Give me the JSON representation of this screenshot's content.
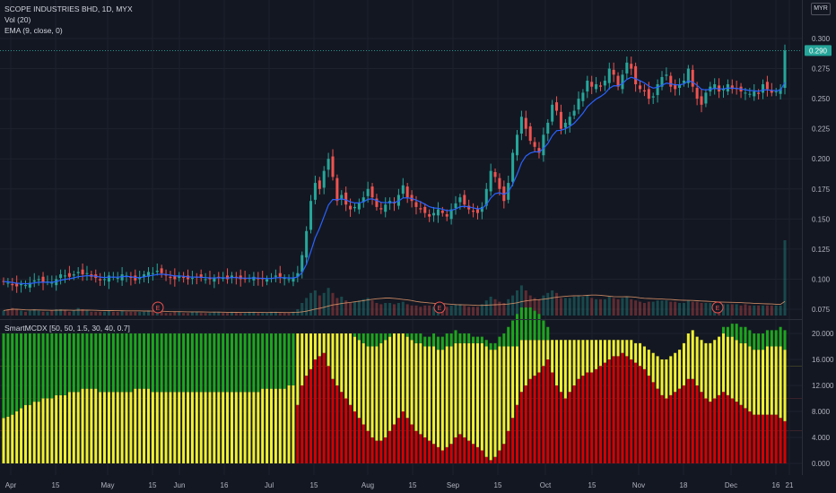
{
  "legend": {
    "title": "SCOPE INDUSTRIES BHD, 1D, MYX",
    "vol": "Vol (20)",
    "ema": "EMA (9, close, 0)",
    "indicator": "SmartMCDX [50, 50, 1.5, 30, 40, 0.7]"
  },
  "currency": "MYR",
  "colors": {
    "background": "#131722",
    "grid": "#1e222d",
    "up": "#26a69a",
    "down": "#ef5350",
    "ema": "#2962ff",
    "vol_ma": "#f0a070",
    "mcdx_banker": "#d50000",
    "mcdx_hot": "#f0f032",
    "mcdx_retail": "#1ea51e",
    "price_tag": "#26a69a",
    "axis_text": "#b2b5be"
  },
  "chart_data": [
    {
      "type": "candlestick",
      "name": "price",
      "y_ticks": [
        "0.300",
        "0.275",
        "0.250",
        "0.225",
        "0.200",
        "0.175",
        "0.150",
        "0.125",
        "0.100",
        "0.075"
      ],
      "ylim": [
        0.07,
        0.31
      ],
      "last_price": "0.290",
      "x_ticks": [
        "Apr",
        "15",
        "May",
        "15",
        "Jun",
        "16",
        "Jul",
        "15",
        "Aug",
        "15",
        "Sep",
        "15",
        "Oct",
        "15",
        "Nov",
        "18",
        "Dec",
        "16",
        "21"
      ],
      "earnings_marker": "E",
      "earnings_count": 3,
      "close": [
        0.098,
        0.097,
        0.095,
        0.094,
        0.096,
        0.095,
        0.097,
        0.099,
        0.1,
        0.097,
        0.098,
        0.097,
        0.1,
        0.104,
        0.103,
        0.102,
        0.104,
        0.106,
        0.104,
        0.105,
        0.102,
        0.101,
        0.099,
        0.1,
        0.103,
        0.102,
        0.101,
        0.104,
        0.103,
        0.101,
        0.099,
        0.101,
        0.104,
        0.106,
        0.105,
        0.107,
        0.105,
        0.103,
        0.101,
        0.1,
        0.103,
        0.101,
        0.1,
        0.101,
        0.102,
        0.101,
        0.1,
        0.1,
        0.101,
        0.102,
        0.101,
        0.1,
        0.103,
        0.101,
        0.1,
        0.1,
        0.101,
        0.102,
        0.1,
        0.1,
        0.1,
        0.101,
        0.103,
        0.102,
        0.101,
        0.1,
        0.101,
        0.105,
        0.12,
        0.14,
        0.165,
        0.18,
        0.175,
        0.19,
        0.2,
        0.185,
        0.165,
        0.17,
        0.162,
        0.158,
        0.16,
        0.163,
        0.168,
        0.175,
        0.168,
        0.16,
        0.158,
        0.162,
        0.165,
        0.163,
        0.17,
        0.178,
        0.168,
        0.165,
        0.16,
        0.158,
        0.155,
        0.152,
        0.155,
        0.158,
        0.155,
        0.152,
        0.158,
        0.163,
        0.168,
        0.162,
        0.158,
        0.156,
        0.155,
        0.16,
        0.175,
        0.19,
        0.185,
        0.175,
        0.165,
        0.18,
        0.205,
        0.22,
        0.235,
        0.225,
        0.215,
        0.21,
        0.205,
        0.22,
        0.23,
        0.245,
        0.24,
        0.225,
        0.23,
        0.235,
        0.24,
        0.25,
        0.255,
        0.265,
        0.26,
        0.262,
        0.26,
        0.265,
        0.275,
        0.27,
        0.26,
        0.27,
        0.28,
        0.275,
        0.262,
        0.258,
        0.256,
        0.25,
        0.252,
        0.262,
        0.268,
        0.27,
        0.26,
        0.258,
        0.262,
        0.265,
        0.275,
        0.26,
        0.25,
        0.245,
        0.255,
        0.26,
        0.262,
        0.256,
        0.258,
        0.262,
        0.258,
        0.258,
        0.256,
        0.255,
        0.254,
        0.256,
        0.254,
        0.262,
        0.258,
        0.255,
        0.256,
        0.258,
        0.29
      ],
      "volume": [
        0.4,
        0.5,
        0.6,
        0.5,
        0.4,
        0.3,
        0.4,
        0.5,
        0.4,
        0.3,
        0.3,
        0.4,
        0.5,
        0.5,
        0.4,
        0.3,
        0.4,
        0.6,
        0.5,
        0.4,
        0.3,
        0.3,
        0.3,
        0.3,
        0.4,
        0.3,
        0.3,
        0.4,
        0.3,
        0.3,
        0.3,
        0.3,
        0.3,
        0.4,
        0.3,
        0.3,
        0.3,
        0.2,
        0.2,
        0.3,
        0.3,
        0.2,
        0.2,
        0.3,
        0.3,
        0.2,
        0.2,
        0.2,
        0.3,
        0.3,
        0.2,
        0.2,
        0.3,
        0.2,
        0.2,
        0.2,
        0.3,
        0.3,
        0.2,
        0.2,
        0.2,
        0.3,
        0.3,
        0.2,
        0.2,
        0.2,
        0.3,
        0.5,
        1.0,
        1.4,
        1.8,
        2.0,
        1.6,
        1.8,
        2.2,
        1.8,
        1.4,
        1.5,
        1.2,
        1.0,
        1.1,
        1.2,
        1.3,
        1.4,
        1.2,
        1.0,
        0.9,
        1.0,
        1.0,
        0.9,
        1.0,
        1.1,
        0.9,
        0.8,
        0.8,
        0.7,
        0.8,
        0.8,
        0.7,
        0.7,
        0.8,
        0.7,
        0.8,
        0.9,
        0.9,
        0.8,
        0.7,
        0.7,
        0.7,
        0.9,
        1.2,
        1.5,
        1.3,
        1.1,
        1.0,
        1.3,
        1.6,
        2.0,
        2.4,
        2.0,
        1.6,
        1.4,
        1.3,
        1.6,
        1.8,
        2.0,
        1.8,
        1.4,
        1.4,
        1.4,
        1.5,
        1.6,
        1.5,
        1.6,
        1.4,
        1.3,
        1.3,
        1.3,
        1.5,
        1.4,
        1.3,
        1.4,
        1.5,
        1.3,
        1.2,
        1.1,
        1.0,
        1.1,
        1.1,
        1.2,
        1.2,
        1.2,
        1.1,
        1.1,
        1.0,
        1.0,
        1.2,
        1.1,
        1.1,
        1.0,
        1.0,
        1.0,
        1.0,
        0.9,
        0.9,
        0.9,
        0.9,
        0.9,
        0.8,
        0.9,
        0.8,
        0.8,
        0.8,
        0.8,
        0.8,
        0.8,
        0.8,
        0.8,
        6.0
      ]
    },
    {
      "type": "stacked_bar",
      "name": "SmartMCDX",
      "y_ticks": [
        "20.000",
        "16.000",
        "12.000",
        "8.000",
        "4.000",
        "0.000"
      ],
      "ylim": [
        0,
        20
      ],
      "banker": [
        0,
        0,
        0,
        0,
        0,
        0,
        0,
        0,
        0,
        0,
        0,
        0,
        0,
        0,
        0,
        0,
        0,
        0,
        0,
        0,
        0,
        0,
        0,
        0,
        0,
        0,
        0,
        0,
        0,
        0,
        0,
        0,
        0,
        0,
        0,
        0,
        0,
        0,
        0,
        0,
        0,
        0,
        0,
        0,
        0,
        0,
        0,
        0,
        0,
        0,
        0,
        0,
        0,
        0,
        0,
        0,
        0,
        0,
        0,
        0,
        0,
        0,
        0,
        0,
        0,
        0,
        0,
        9,
        12,
        13.5,
        14.5,
        16,
        16.5,
        17,
        15,
        13,
        12,
        11,
        10,
        9,
        8,
        7,
        6,
        5,
        4,
        3.5,
        3.5,
        4,
        5,
        6,
        7,
        8,
        7,
        6,
        5,
        4.5,
        4,
        3.5,
        3,
        2.5,
        2,
        2.5,
        3,
        4,
        4.5,
        4,
        3.5,
        3,
        2.5,
        2,
        1,
        0.5,
        1,
        2,
        3,
        5,
        7,
        9,
        11,
        12,
        13,
        13.5,
        14,
        15,
        16,
        14,
        12,
        11,
        10,
        11,
        12,
        13,
        13.5,
        14,
        14,
        14.5,
        15,
        15.5,
        16,
        16.5,
        16.5,
        17,
        16.5,
        16,
        15.5,
        15,
        14.5,
        13.5,
        12.5,
        11.5,
        10.5,
        10,
        10.5,
        11,
        11.5,
        12,
        13,
        13,
        12,
        11,
        10,
        9.5,
        10,
        10.5,
        11,
        10.5,
        10,
        9.5,
        9,
        8.5,
        8,
        7.5,
        7.5,
        7.5,
        7.5,
        7.5,
        7.5,
        7,
        6.5,
        6.5,
        6,
        6,
        6.5,
        12.5
      ],
      "hot": [
        7,
        7.2,
        7.5,
        8,
        8.5,
        9,
        9,
        9.5,
        9.5,
        10,
        10,
        10,
        10.5,
        10.5,
        10.5,
        11,
        11,
        11,
        11.5,
        11.5,
        11.5,
        11.5,
        11,
        11,
        11,
        11,
        11,
        11,
        11,
        11,
        11.5,
        11.5,
        11.5,
        11.5,
        11,
        11,
        11,
        11,
        11,
        11,
        11,
        11,
        11,
        11,
        11,
        11,
        11,
        11,
        11,
        11,
        11,
        11,
        11,
        11,
        11,
        11,
        11,
        11,
        11,
        11.5,
        11.5,
        11.5,
        11.5,
        11.5,
        11.5,
        12,
        12,
        11,
        8,
        6.5,
        5.5,
        4,
        3.5,
        3,
        5,
        7,
        8,
        9,
        10,
        11,
        11.5,
        12,
        12.5,
        13,
        14,
        14.5,
        15,
        15,
        14.5,
        14,
        13,
        12,
        12.5,
        13,
        13.5,
        14,
        14,
        14.5,
        15,
        15,
        15.5,
        15.5,
        15,
        14.5,
        14,
        14.5,
        15,
        15.5,
        16,
        16.5,
        17,
        17,
        16.5,
        16,
        15,
        13,
        11,
        9,
        8,
        7,
        6,
        5.5,
        5,
        4,
        3,
        5,
        7,
        8,
        9,
        8,
        7,
        6,
        5.5,
        5,
        5,
        4.5,
        4,
        3.5,
        3,
        2.5,
        2.5,
        2,
        2.5,
        3,
        3,
        3.5,
        3.5,
        4,
        4.5,
        5,
        5.5,
        6,
        6,
        6,
        6,
        6.5,
        7,
        7.5,
        7.5,
        8,
        8.5,
        9,
        9,
        9,
        9,
        9,
        9.5,
        9.5,
        9.5,
        10,
        10,
        10,
        10,
        10,
        10.5,
        10.5,
        10.5,
        11,
        11,
        11,
        11,
        6
      ],
      "retail": [
        13,
        12.8,
        12.5,
        12,
        11.5,
        11,
        11,
        10.5,
        10.5,
        10,
        10,
        10,
        9.5,
        9.5,
        9.5,
        9,
        9,
        9,
        8.5,
        8.5,
        8.5,
        8.5,
        9,
        9,
        9,
        9,
        9,
        9,
        9,
        9,
        8.5,
        8.5,
        8.5,
        8.5,
        9,
        9,
        9,
        9,
        9,
        9,
        9,
        9,
        9,
        9,
        9,
        9,
        9,
        9,
        9,
        9,
        9,
        9,
        9,
        9,
        9,
        9,
        9,
        9,
        9,
        8.5,
        8.5,
        8.5,
        8.5,
        8.5,
        8.5,
        8,
        8,
        0,
        0,
        0,
        0,
        0,
        0,
        0,
        0,
        0,
        0,
        0,
        0,
        0,
        0.5,
        1,
        1.5,
        2,
        2,
        2,
        1.5,
        1,
        0.5,
        0,
        0,
        0,
        0.5,
        1,
        1.5,
        1.5,
        1.5,
        1.5,
        2,
        2,
        2,
        2,
        2,
        2,
        1.5,
        1.5,
        1.5,
        1,
        1,
        1,
        1,
        1,
        1,
        1.5,
        2,
        3,
        4,
        5,
        5,
        5,
        5,
        4.5,
        4,
        3,
        2,
        0,
        0,
        0,
        0,
        0,
        0,
        0,
        0,
        0,
        0,
        0,
        0,
        0,
        0,
        0,
        0,
        0,
        0,
        0,
        0,
        0,
        0,
        0,
        0,
        0,
        0,
        0,
        0,
        0,
        0,
        0,
        0,
        0,
        0,
        0,
        0,
        0,
        0,
        0,
        1,
        1.5,
        2,
        2.5,
        2.5,
        2.5,
        2.5,
        2.5,
        2.5,
        2.5,
        2.5,
        2.5,
        2.5,
        3,
        3,
        3,
        3,
        3,
        3,
        3.5,
        3.5,
        3.5,
        3,
        3,
        1.5
      ]
    }
  ]
}
